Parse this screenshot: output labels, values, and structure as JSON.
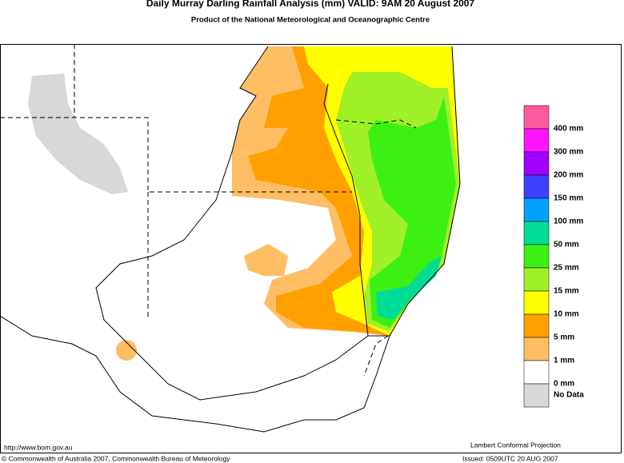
{
  "header": {
    "title": "Daily Murray Darling Rainfall Analysis (mm)  VALID: 9AM 20 August 2007",
    "subtitle": "Product of the National Meteorological and Oceanographic Centre"
  },
  "legend": {
    "colors": [
      "#ff5aa0",
      "#ff14ff",
      "#a000ff",
      "#4040ff",
      "#00a0ff",
      "#00dc96",
      "#3cf014",
      "#a0f028",
      "#ffff00",
      "#ffa000",
      "#ffbe64",
      "#ffffff",
      "#d8d8d8"
    ],
    "labels": [
      "400 mm",
      "300 mm",
      "200 mm",
      "150 mm",
      "100 mm",
      "50 mm",
      "25 mm",
      "15 mm",
      "10 mm",
      "5 mm",
      "1 mm",
      "0 mm"
    ],
    "no_data": "No Data"
  },
  "footer": {
    "url": "http://www.bom.gov.au",
    "projection": "Lambert Conformal Projection",
    "copyright": "© Commonwealth of Australia 2007, Commonwealth Bureau of Meteorology",
    "issued": "Issued: 0509UTC 20 AUG 2007"
  }
}
